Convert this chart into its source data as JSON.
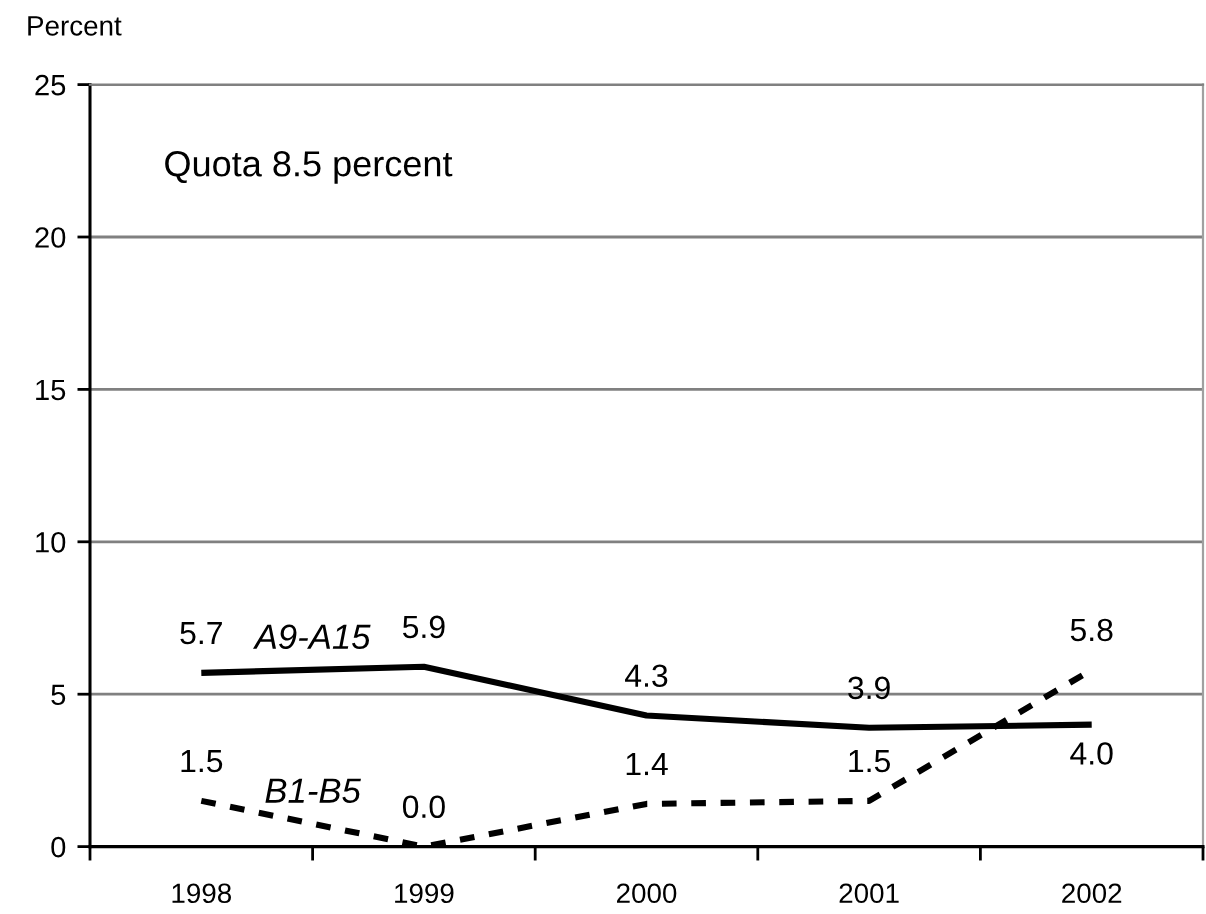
{
  "chart_data": {
    "type": "line",
    "ylabel": "Percent",
    "annotations": [
      "Quota 8.5 percent"
    ],
    "categories": [
      "1998",
      "1999",
      "2000",
      "2001",
      "2002"
    ],
    "series": [
      {
        "name": "A9-A15",
        "color": "#000000",
        "line_style": "solid",
        "values": [
          5.7,
          5.9,
          4.3,
          3.9,
          4.0
        ],
        "value_labels": [
          "5.7",
          "5.9",
          "4.3",
          "3.9",
          "4.0"
        ]
      },
      {
        "name": "B1-B5",
        "color": "#000000",
        "line_style": "dashed",
        "values": [
          1.5,
          0.0,
          1.4,
          1.5,
          5.8
        ],
        "value_labels": [
          "1.5",
          "0.0",
          "1.4",
          "1.5",
          "5.8"
        ]
      }
    ],
    "ylim": [
      0,
      25
    ],
    "yticks": [
      0,
      5,
      10,
      15,
      20,
      25
    ],
    "grid": "y",
    "marker": "none"
  }
}
